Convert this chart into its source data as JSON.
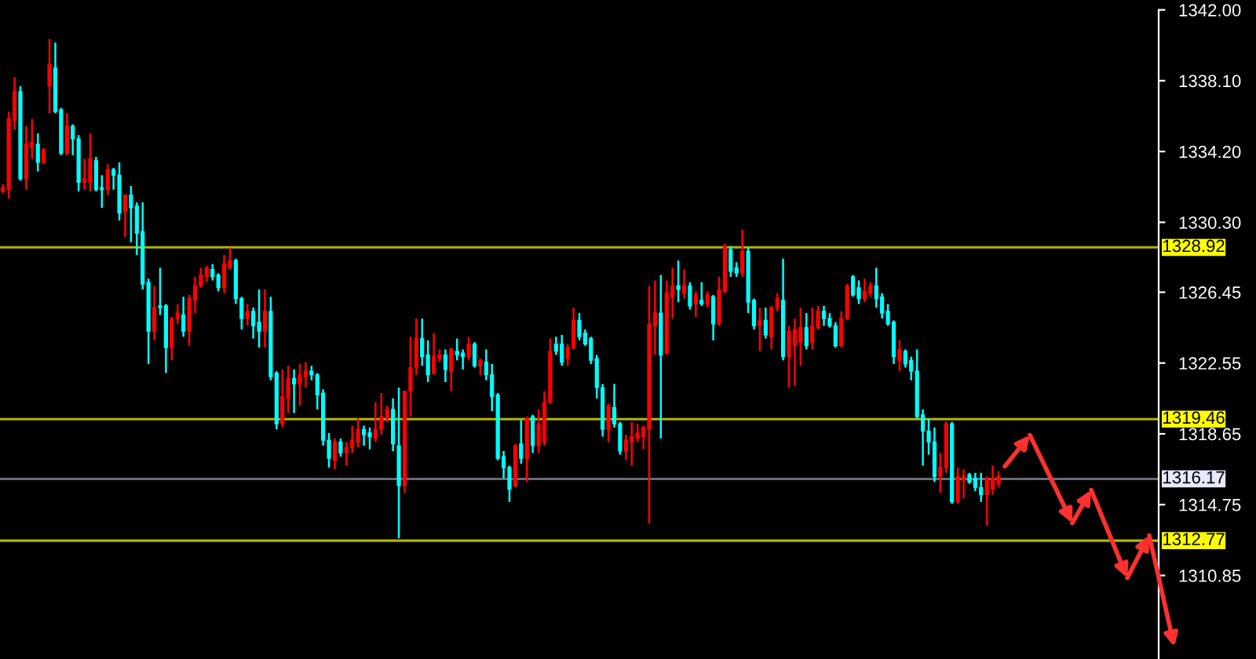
{
  "chart_data": {
    "type": "candlestick",
    "categories": [
      null,
      null,
      null,
      null,
      null,
      null,
      null,
      null,
      null,
      null,
      null,
      null,
      null,
      null,
      null,
      null,
      null,
      null,
      null,
      null,
      null,
      null,
      null,
      null,
      null,
      null,
      null,
      null,
      null,
      null,
      null,
      null,
      null,
      null,
      null,
      null,
      null,
      null,
      null,
      null,
      null,
      null,
      null,
      null,
      null,
      null,
      null,
      null,
      null,
      null,
      null,
      null,
      null,
      null,
      null,
      null,
      null,
      null,
      null,
      null,
      null,
      null,
      null,
      null,
      null,
      null,
      null,
      null,
      null,
      null,
      null,
      null,
      null,
      null,
      null,
      null,
      null,
      null,
      null,
      null,
      null,
      null,
      null,
      null,
      null,
      null,
      null,
      null,
      null,
      null,
      null,
      null,
      null,
      null,
      null,
      null,
      null,
      null,
      null,
      null,
      null,
      null,
      null,
      null,
      null,
      null,
      null,
      null,
      null,
      null,
      null,
      null,
      null,
      null,
      null,
      null,
      null,
      null,
      null,
      null,
      null,
      null,
      null,
      null,
      null,
      null,
      null,
      null,
      null,
      null,
      null,
      null,
      null,
      null,
      null,
      null,
      null,
      null,
      null,
      null,
      null,
      null,
      null,
      null,
      null,
      null,
      null,
      null,
      null,
      null,
      null,
      null,
      null,
      null,
      null,
      null,
      null,
      null,
      null,
      null,
      null,
      null,
      null,
      null,
      null,
      null,
      null,
      null,
      null,
      null,
      null,
      null,
      null,
      null,
      null,
      null,
      null,
      null,
      null,
      null,
      null,
      null,
      null,
      null,
      null,
      null,
      null,
      null,
      null,
      null,
      null,
      null,
      null,
      null,
      null,
      null,
      null,
      null,
      null
    ],
    "ohlc": [
      [
        1332.0,
        1332.4,
        1331.9,
        1332.2
      ],
      [
        1332.1,
        1336.4,
        1331.6,
        1336.0
      ],
      [
        1335.9,
        1338.3,
        1335.4,
        1337.5
      ],
      [
        1337.5,
        1337.8,
        1332.6,
        1332.7
      ],
      [
        1332.7,
        1335.6,
        1332.1,
        1334.6
      ],
      [
        1334.4,
        1336.0,
        1333.8,
        1334.7
      ],
      [
        1334.6,
        1335.2,
        1333.1,
        1333.6
      ],
      [
        1333.6,
        1334.4,
        1333.5,
        1334.3
      ],
      [
        1337.8,
        1340.4,
        1336.3,
        1339.0
      ],
      [
        1338.8,
        1340.2,
        1336.3,
        1336.4
      ],
      [
        1336.5,
        1336.6,
        1334.0,
        1334.1
      ],
      [
        1334.1,
        1336.3,
        1334.0,
        1335.6
      ],
      [
        1335.6,
        1335.7,
        1334.0,
        1334.9
      ],
      [
        1334.9,
        1335.1,
        1332.0,
        1332.5
      ],
      [
        1332.5,
        1333.8,
        1332.1,
        1332.7
      ],
      [
        1332.5,
        1335.2,
        1332.0,
        1333.8
      ],
      [
        1333.7,
        1333.9,
        1332.0,
        1332.1
      ],
      [
        1332.2,
        1332.9,
        1331.1,
        1332.1
      ],
      [
        1332.1,
        1333.5,
        1331.8,
        1333.2
      ],
      [
        1333.2,
        1333.3,
        1332.1,
        1332.9
      ],
      [
        1332.9,
        1333.6,
        1330.4,
        1330.8
      ],
      [
        1330.9,
        1331.8,
        1329.5,
        1331.8
      ],
      [
        1331.8,
        1332.3,
        1329.2,
        1331.1
      ],
      [
        1331.2,
        1331.4,
        1328.5,
        1329.7
      ],
      [
        1329.8,
        1331.4,
        1326.6,
        1326.9
      ],
      [
        1327.0,
        1327.2,
        1322.5,
        1324.3
      ],
      [
        1324.3,
        1326.8,
        1323.8,
        1325.6
      ],
      [
        1325.7,
        1327.8,
        1325.2,
        1325.6
      ],
      [
        1325.7,
        1325.8,
        1322.0,
        1323.4
      ],
      [
        1323.4,
        1325.1,
        1322.7,
        1325.0
      ],
      [
        1325.0,
        1325.8,
        1324.7,
        1325.3
      ],
      [
        1325.2,
        1326.2,
        1324.0,
        1324.3
      ],
      [
        1324.3,
        1326.3,
        1323.5,
        1326.1
      ],
      [
        1326.0,
        1327.3,
        1325.3,
        1326.8
      ],
      [
        1326.8,
        1327.8,
        1326.7,
        1327.4
      ],
      [
        1327.3,
        1327.9,
        1327.0,
        1327.8
      ],
      [
        1327.7,
        1328.0,
        1327.1,
        1327.3
      ],
      [
        1327.4,
        1327.5,
        1326.5,
        1326.7
      ],
      [
        1326.7,
        1328.5,
        1326.4,
        1328.0
      ],
      [
        1327.8,
        1328.9,
        1327.7,
        1328.2
      ],
      [
        1328.2,
        1328.3,
        1325.8,
        1326.1
      ],
      [
        1326.1,
        1326.2,
        1324.4,
        1325.0
      ],
      [
        1325.0,
        1325.8,
        1324.6,
        1325.4
      ],
      [
        1325.4,
        1325.6,
        1323.9,
        1324.6
      ],
      [
        1324.8,
        1326.6,
        1323.4,
        1324.3
      ],
      [
        1324.3,
        1326.6,
        1323.4,
        1325.4
      ],
      [
        1325.4,
        1326.2,
        1321.6,
        1321.8
      ],
      [
        1322.0,
        1322.1,
        1318.9,
        1319.2
      ],
      [
        1319.2,
        1322.2,
        1319.0,
        1320.7
      ],
      [
        1320.6,
        1322.4,
        1319.8,
        1321.7
      ],
      [
        1321.7,
        1322.2,
        1319.8,
        1321.4
      ],
      [
        1321.4,
        1322.5,
        1320.2,
        1321.9
      ],
      [
        1321.8,
        1322.6,
        1321.2,
        1322.1
      ],
      [
        1322.1,
        1322.4,
        1321.6,
        1321.9
      ],
      [
        1321.9,
        1322.0,
        1320.0,
        1320.8
      ],
      [
        1320.9,
        1321.1,
        1318.0,
        1318.3
      ],
      [
        1318.3,
        1318.7,
        1316.8,
        1317.3
      ],
      [
        1317.2,
        1318.4,
        1316.7,
        1318.2
      ],
      [
        1318.2,
        1318.4,
        1317.4,
        1317.6
      ],
      [
        1317.6,
        1318.2,
        1316.9,
        1317.9
      ],
      [
        1317.9,
        1319.1,
        1317.6,
        1318.3
      ],
      [
        1318.2,
        1319.5,
        1317.9,
        1318.9
      ],
      [
        1318.9,
        1319.1,
        1318.0,
        1318.6
      ],
      [
        1318.7,
        1319.0,
        1317.8,
        1318.5
      ],
      [
        1318.4,
        1320.4,
        1318.2,
        1318.9
      ],
      [
        1318.9,
        1320.9,
        1318.6,
        1319.6
      ],
      [
        1319.5,
        1320.2,
        1319.3,
        1320.0
      ],
      [
        1320.0,
        1320.6,
        1317.7,
        1318.1
      ],
      [
        1318.0,
        1321.2,
        1312.9,
        1315.8
      ],
      [
        1315.8,
        1321.0,
        1315.4,
        1321.0
      ],
      [
        1321.0,
        1324.0,
        1319.6,
        1322.3
      ],
      [
        1322.3,
        1325.0,
        1321.9,
        1323.9
      ],
      [
        1323.9,
        1325.0,
        1322.4,
        1322.9
      ],
      [
        1323.0,
        1323.8,
        1321.5,
        1321.9
      ],
      [
        1322.0,
        1324.2,
        1321.9,
        1322.9
      ],
      [
        1322.8,
        1323.3,
        1322.6,
        1323.0
      ],
      [
        1323.0,
        1323.3,
        1321.5,
        1322.2
      ],
      [
        1322.1,
        1323.4,
        1321.0,
        1323.3
      ],
      [
        1323.2,
        1323.9,
        1322.7,
        1323.0
      ],
      [
        1323.1,
        1323.3,
        1322.2,
        1322.9
      ],
      [
        1322.9,
        1324.0,
        1322.7,
        1323.6
      ],
      [
        1323.6,
        1323.7,
        1322.3,
        1322.4
      ],
      [
        1322.4,
        1322.8,
        1321.9,
        1322.7
      ],
      [
        1322.6,
        1323.3,
        1321.6,
        1321.9
      ],
      [
        1321.9,
        1322.5,
        1319.9,
        1320.7
      ],
      [
        1320.8,
        1320.9,
        1317.2,
        1317.3
      ],
      [
        1317.4,
        1317.7,
        1316.2,
        1316.8
      ],
      [
        1316.8,
        1316.9,
        1314.9,
        1315.6
      ],
      [
        1315.8,
        1318.1,
        1315.7,
        1318.0
      ],
      [
        1318.1,
        1319.4,
        1317.0,
        1317.3
      ],
      [
        1317.3,
        1319.6,
        1316.0,
        1319.5
      ],
      [
        1319.6,
        1319.7,
        1317.6,
        1318.0
      ],
      [
        1318.0,
        1320.0,
        1317.6,
        1319.2
      ],
      [
        1318.2,
        1321.0,
        1318.0,
        1320.4
      ],
      [
        1320.4,
        1323.9,
        1320.3,
        1323.2
      ],
      [
        1323.6,
        1324.0,
        1323.0,
        1323.2
      ],
      [
        1323.6,
        1324.1,
        1322.4,
        1322.6
      ],
      [
        1322.8,
        1323.6,
        1322.4,
        1323.4
      ],
      [
        1323.4,
        1325.6,
        1323.3,
        1324.9
      ],
      [
        1324.9,
        1325.3,
        1323.8,
        1324.0
      ],
      [
        1324.2,
        1324.4,
        1323.5,
        1323.6
      ],
      [
        1323.9,
        1324.0,
        1322.5,
        1322.7
      ],
      [
        1322.8,
        1323.0,
        1320.6,
        1321.2
      ],
      [
        1321.2,
        1321.4,
        1318.5,
        1318.9
      ],
      [
        1318.9,
        1320.3,
        1318.2,
        1320.2
      ],
      [
        1320.1,
        1321.4,
        1319.0,
        1319.2
      ],
      [
        1319.2,
        1319.3,
        1317.5,
        1317.7
      ],
      [
        1317.7,
        1318.6,
        1317.2,
        1318.3
      ],
      [
        1318.2,
        1319.3,
        1316.9,
        1318.5
      ],
      [
        1318.4,
        1319.2,
        1318.2,
        1318.7
      ],
      [
        1318.5,
        1319.1,
        1317.8,
        1319.0
      ],
      [
        1318.9,
        1326.8,
        1313.7,
        1324.7
      ],
      [
        1324.6,
        1327.1,
        1323.0,
        1325.3
      ],
      [
        1325.3,
        1327.4,
        1318.4,
        1323.0
      ],
      [
        1323.1,
        1327.1,
        1323.0,
        1326.4
      ],
      [
        1326.2,
        1327.8,
        1325.0,
        1326.8
      ],
      [
        1326.8,
        1328.2,
        1325.9,
        1326.6
      ],
      [
        1326.4,
        1327.7,
        1326.1,
        1326.8
      ],
      [
        1326.8,
        1327.0,
        1325.5,
        1325.7
      ],
      [
        1325.8,
        1326.5,
        1325.1,
        1326.3
      ],
      [
        1326.0,
        1327.0,
        1325.7,
        1325.8
      ],
      [
        1325.8,
        1326.5,
        1325.6,
        1326.3
      ],
      [
        1326.2,
        1326.3,
        1323.8,
        1324.7
      ],
      [
        1324.7,
        1327.3,
        1324.6,
        1326.6
      ],
      [
        1326.5,
        1329.1,
        1326.4,
        1329.0
      ],
      [
        1328.8,
        1329.0,
        1327.3,
        1327.6
      ],
      [
        1327.8,
        1328.1,
        1327.3,
        1327.5
      ],
      [
        1327.5,
        1329.9,
        1327.3,
        1328.7
      ],
      [
        1328.7,
        1328.9,
        1325.3,
        1325.9
      ],
      [
        1326.0,
        1326.1,
        1324.4,
        1324.6
      ],
      [
        1324.6,
        1325.6,
        1323.2,
        1324.9
      ],
      [
        1324.9,
        1325.6,
        1323.9,
        1324.1
      ],
      [
        1324.0,
        1325.7,
        1323.3,
        1325.6
      ],
      [
        1325.6,
        1326.4,
        1325.4,
        1326.1
      ],
      [
        1326.0,
        1328.3,
        1322.7,
        1322.9
      ],
      [
        1322.9,
        1324.6,
        1321.2,
        1324.3
      ],
      [
        1323.5,
        1325.0,
        1321.3,
        1324.4
      ],
      [
        1323.7,
        1325.6,
        1322.4,
        1324.5
      ],
      [
        1324.5,
        1325.3,
        1323.3,
        1323.5
      ],
      [
        1323.7,
        1325.6,
        1323.3,
        1324.6
      ],
      [
        1324.5,
        1325.7,
        1324.4,
        1325.4
      ],
      [
        1325.4,
        1325.7,
        1324.6,
        1325.0
      ],
      [
        1325.0,
        1325.3,
        1324.5,
        1324.6
      ],
      [
        1324.6,
        1324.8,
        1323.4,
        1323.5
      ],
      [
        1323.5,
        1325.4,
        1323.4,
        1325.0
      ],
      [
        1325.0,
        1326.9,
        1324.9,
        1326.8
      ],
      [
        1327.3,
        1327.4,
        1326.2,
        1326.3
      ],
      [
        1326.7,
        1327.1,
        1325.8,
        1326.1
      ],
      [
        1326.1,
        1327.2,
        1325.9,
        1326.5
      ],
      [
        1326.4,
        1327.0,
        1326.2,
        1326.8
      ],
      [
        1326.8,
        1327.8,
        1325.6,
        1326.1
      ],
      [
        1326.2,
        1326.4,
        1325.0,
        1325.3
      ],
      [
        1325.4,
        1325.8,
        1324.6,
        1324.7
      ],
      [
        1324.8,
        1324.9,
        1322.5,
        1322.9
      ],
      [
        1322.7,
        1323.8,
        1322.1,
        1323.3
      ],
      [
        1323.2,
        1323.3,
        1322.3,
        1322.5
      ],
      [
        1322.7,
        1322.9,
        1321.6,
        1322.1
      ],
      [
        1322.1,
        1323.3,
        1319.5,
        1319.6
      ],
      [
        1319.7,
        1320.0,
        1316.9,
        1318.8
      ],
      [
        1318.8,
        1319.5,
        1317.5,
        1318.2
      ],
      [
        1318.2,
        1319.0,
        1316.0,
        1316.3
      ],
      [
        1316.3,
        1317.6,
        1315.4,
        1316.8
      ],
      [
        1316.8,
        1319.3,
        1316.5,
        1319.2
      ],
      [
        1319.2,
        1319.3,
        1314.8,
        1314.9
      ],
      [
        1314.9,
        1316.8,
        1314.8,
        1316.3
      ],
      [
        1316.1,
        1316.7,
        1315.1,
        1316.3
      ],
      [
        1316.4,
        1316.5,
        1315.9,
        1316.0
      ],
      [
        1316.2,
        1316.5,
        1315.5,
        1315.7
      ],
      [
        1315.7,
        1316.5,
        1314.9,
        1315.3
      ],
      [
        1315.3,
        1316.3,
        1313.6,
        1316.2
      ],
      [
        1315.6,
        1316.9,
        1315.3,
        1316.2
      ],
      [
        1315.9,
        1316.6,
        1315.7,
        1316.3
      ],
      null,
      null,
      null,
      null,
      null,
      null,
      null,
      null,
      null,
      null,
      null,
      null,
      null,
      null,
      null,
      null,
      null,
      null,
      null,
      null,
      null,
      null,
      null,
      null,
      null,
      null,
      null
    ],
    "colors": [
      "#ff0000",
      "#ff0000",
      "#ff0000",
      "#00ffff",
      "#ff0000",
      "#ff0000",
      "#00ffff",
      "#ff0000",
      "#ff0000",
      "#00ffff",
      "#00ffff",
      "#ff0000",
      "#00ffff",
      "#00ffff",
      "#ff0000",
      "#ff0000",
      "#00ffff",
      "#00ffff",
      "#ff0000",
      "#00ffff",
      "#00ffff",
      "#ff0000",
      "#00ffff",
      "#00ffff",
      "#00ffff",
      "#00ffff",
      "#ff0000",
      "#00ffff",
      "#00ffff",
      "#ff0000",
      "#ff0000",
      "#00ffff",
      "#ff0000",
      "#ff0000",
      "#ff0000",
      "#ff0000",
      "#00ffff",
      "#00ffff",
      "#ff0000",
      "#ff0000",
      "#00ffff",
      "#00ffff",
      "#ff0000",
      "#00ffff",
      "#00ffff",
      "#ff0000",
      "#00ffff",
      "#00ffff",
      "#ff0000",
      "#ff0000",
      "#00ffff",
      "#ff0000",
      "#ff0000",
      "#00ffff",
      "#00ffff",
      "#00ffff",
      "#00ffff",
      "#ff0000",
      "#00ffff",
      "#ff0000",
      "#ff0000",
      "#ff0000",
      "#00ffff",
      "#00ffff",
      "#ff0000",
      "#ff0000",
      "#ff0000",
      "#00ffff",
      "#00ffff",
      "#ff0000",
      "#ff0000",
      "#ff0000",
      "#00ffff",
      "#00ffff",
      "#ff0000",
      "#ff0000",
      "#00ffff",
      "#ff0000",
      "#00ffff",
      "#00ffff",
      "#ff0000",
      "#00ffff",
      "#ff0000",
      "#00ffff",
      "#00ffff",
      "#00ffff",
      "#00ffff",
      "#00ffff",
      "#ff0000",
      "#00ffff",
      "#ff0000",
      "#00ffff",
      "#ff0000",
      "#ff0000",
      "#ff0000",
      "#00ffff",
      "#00ffff",
      "#ff0000",
      "#ff0000",
      "#00ffff",
      "#00ffff",
      "#00ffff",
      "#00ffff",
      "#00ffff",
      "#ff0000",
      "#00ffff",
      "#00ffff",
      "#ff0000",
      "#ff0000",
      "#ff0000",
      "#ff0000",
      "#ff0000",
      "#ff0000",
      "#00ffff",
      "#ff0000",
      "#ff0000",
      "#00ffff",
      "#ff0000",
      "#00ffff",
      "#ff0000",
      "#00ffff",
      "#ff0000",
      "#00ffff",
      "#ff0000",
      "#ff0000",
      "#00ffff",
      "#00ffff",
      "#ff0000",
      "#00ffff",
      "#00ffff",
      "#ff0000",
      "#00ffff",
      "#ff0000",
      "#ff0000",
      "#00ffff",
      "#ff0000",
      "#ff0000",
      "#ff0000",
      "#00ffff",
      "#ff0000",
      "#ff0000",
      "#00ffff",
      "#00ffff",
      "#00ffff",
      "#ff0000",
      "#ff0000",
      "#00ffff",
      "#00ffff",
      "#ff0000",
      "#ff0000",
      "#00ffff",
      "#00ffff",
      "#00ffff",
      "#00ffff",
      "#ff0000",
      "#00ffff",
      "#00ffff",
      "#00ffff",
      "#00ffff",
      "#00ffff",
      "#00ffff",
      "#ff0000",
      "#ff0000",
      "#00ffff",
      "#ff0000",
      "#ff0000",
      "#00ffff",
      "#00ffff",
      "#00ffff",
      "#ff0000",
      "#ff0000",
      "#ff0000",
      null,
      null,
      null,
      null,
      null,
      null,
      null,
      null,
      null,
      null,
      null,
      null,
      null,
      null,
      null,
      null,
      null,
      null,
      null,
      null,
      null,
      null,
      null,
      null,
      null,
      null,
      null
    ],
    "ylim": [
      1306.25,
      1342.0
    ],
    "yticks": [
      {
        "value": 1310.85,
        "label": "1310.85"
      },
      {
        "value": 1314.75,
        "label": "1314.75"
      },
      {
        "value": 1318.65,
        "label": "1318.65"
      },
      {
        "value": 1322.55,
        "label": "1322.55"
      },
      {
        "value": 1326.45,
        "label": "1326.45"
      },
      {
        "value": 1330.3,
        "label": "1330.30"
      },
      {
        "value": 1334.2,
        "label": "1334.20"
      },
      {
        "value": 1338.1,
        "label": "1338.10"
      },
      {
        "value": 1342.0,
        "label": "1342.00"
      }
    ],
    "tick_labels": "y",
    "ref_lines": [
      {
        "axis": "y",
        "value": 1328.92,
        "label": "1328.92",
        "color": "#b4b400"
      },
      {
        "axis": "y",
        "value": 1319.46,
        "label": "1319.46",
        "color": "#b4b400"
      },
      {
        "axis": "y",
        "value": 1316.17,
        "label": "1316.17",
        "color": "#6a6a78"
      },
      {
        "axis": "y",
        "value": 1312.77,
        "label": "1312.77",
        "color": "#b4b400"
      }
    ]
  }
}
